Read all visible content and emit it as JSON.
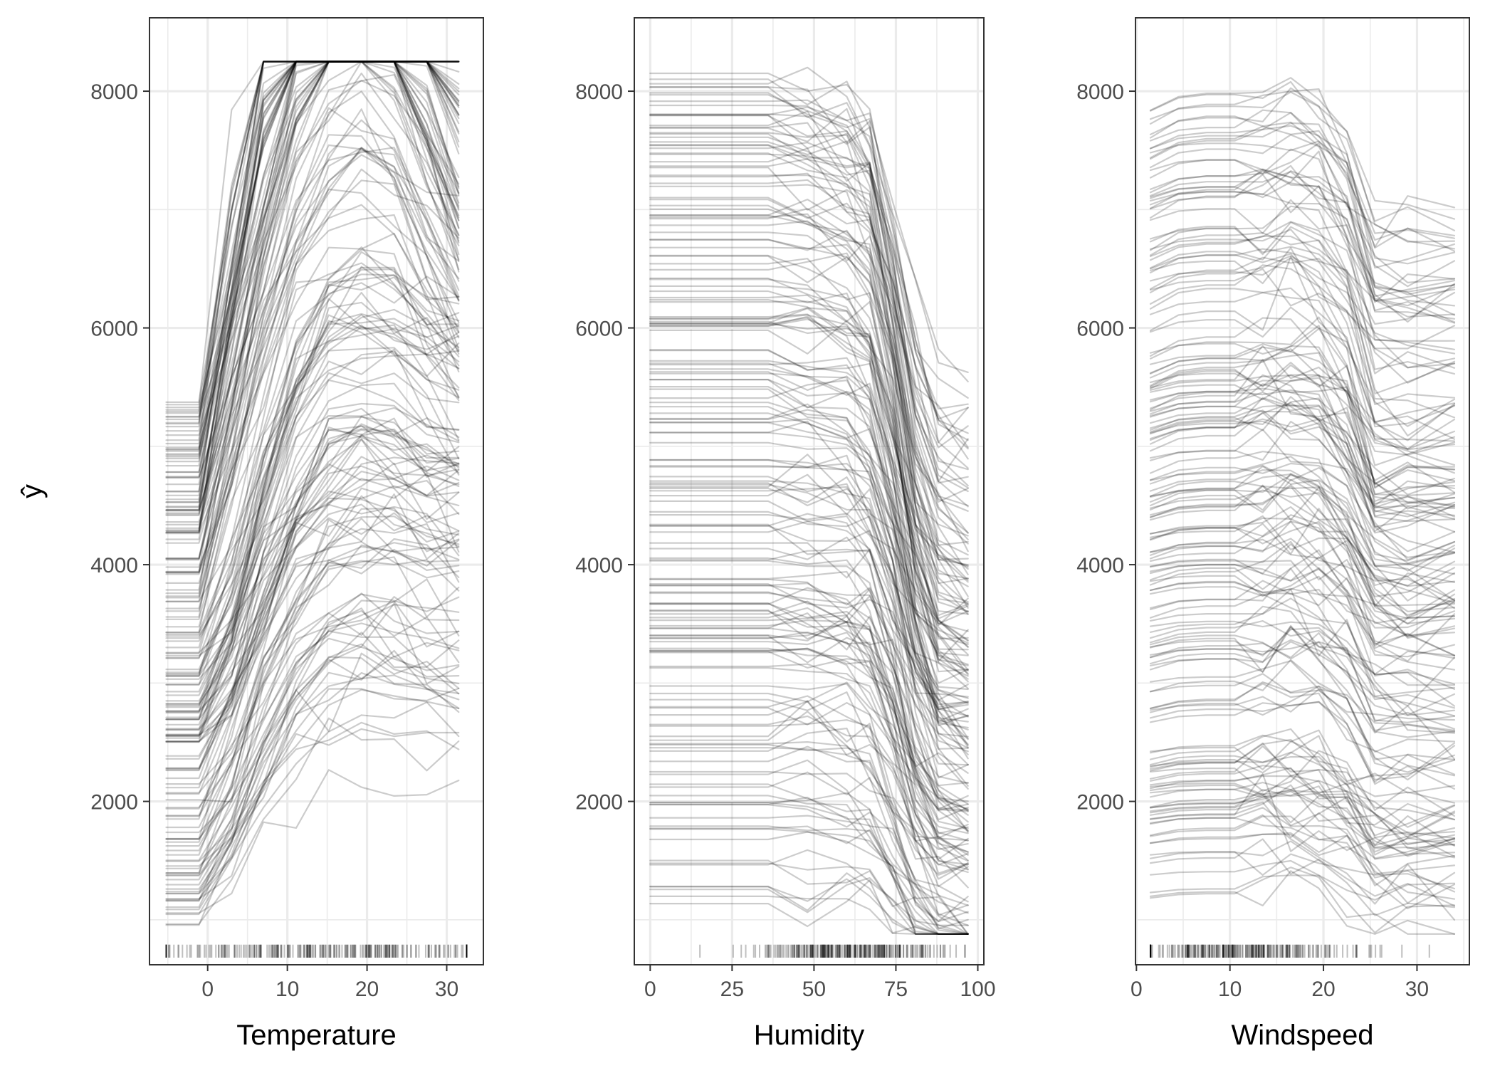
{
  "chart_data": {
    "type": "line",
    "description_kind": "individual conditional expectation curves with rug",
    "ylabel": "ŷ",
    "ylim": [
      620,
      8620
    ],
    "y_ticks": [
      2000,
      4000,
      6000,
      8000
    ],
    "y_tick_labels": [
      "2000",
      "4000",
      "6000",
      "8000"
    ],
    "line_color": "#000000",
    "line_opacity": 0.2,
    "rug_color": "#000000",
    "rug_opacity": 0.25,
    "panels": [
      {
        "id": "temperature",
        "xlabel": "Temperature",
        "xlim": [
          -7.3,
          34.6
        ],
        "x_ticks": [
          0,
          10,
          20,
          30
        ],
        "x_tick_labels": [
          "0",
          "10",
          "20",
          "30"
        ],
        "x_grid": [
          -5,
          5,
          15,
          25,
          0,
          10,
          20,
          30
        ],
        "grid_x": [
          -5.2,
          -1.1,
          3.0,
          7.0,
          11.1,
          15.2,
          19.3,
          23.4,
          27.5,
          31.5
        ],
        "rug_range": [
          -5.2,
          32.5
        ],
        "rug_peak": 15,
        "rug_spread": 12,
        "ice": {
          "x": [
            -5.2,
            -1.1,
            3.0,
            7.0,
            11.1,
            15.2,
            19.3,
            23.4,
            27.5,
            31.5
          ],
          "n_curves": 180,
          "base_range": [
            920,
            5420
          ],
          "lower_profile": [
            0,
            0,
            400,
            1000,
            1500,
            1800,
            1900,
            1850,
            1750,
            1700
          ],
          "upper_profile": [
            0,
            0,
            800,
            1600,
            2300,
            2700,
            2800,
            2650,
            2150,
            1650
          ],
          "upper_start": 3600,
          "jump_threshold": 2400,
          "max_y": 8250
        }
      },
      {
        "id": "humidity",
        "xlabel": "Humidity",
        "xlim": [
          -4.85,
          101.85
        ],
        "x_ticks": [
          0,
          25,
          50,
          75,
          100
        ],
        "x_tick_labels": [
          "0",
          "25",
          "50",
          "75",
          "100"
        ],
        "x_grid": [
          0,
          12.5,
          25,
          37.5,
          50,
          62.5,
          75,
          87.5,
          100
        ],
        "grid_x": [
          0,
          12,
          24,
          36,
          48,
          60,
          67,
          74,
          81,
          88,
          97
        ],
        "rug_range": [
          0,
          97
        ],
        "rug_peak": 62,
        "rug_spread": 14,
        "ice": {
          "x": [
            0,
            12,
            24,
            36,
            48,
            60,
            67,
            74,
            81,
            88,
            97
          ],
          "n_curves": 180,
          "base_range": [
            1080,
            8180
          ],
          "drop_profile": [
            0,
            0,
            0,
            0,
            -30,
            -120,
            -250,
            -900,
            -1700,
            -2150,
            -2250
          ],
          "max_y": 8200
        }
      },
      {
        "id": "windspeed",
        "xlabel": "Windspeed",
        "xlim": [
          -0.1,
          35.6
        ],
        "x_ticks": [
          0,
          10,
          20,
          30
        ],
        "x_tick_labels": [
          "0",
          "10",
          "20",
          "30"
        ],
        "x_grid": [
          0,
          5,
          10,
          15,
          20,
          25,
          30,
          35
        ],
        "grid_x": [
          1.5,
          4.5,
          7.5,
          10.5,
          13.5,
          16.5,
          19.5,
          22.5,
          25.5,
          29.0,
          34.0
        ],
        "rug_range": [
          1.5,
          34.0
        ],
        "rug_peak": 11,
        "rug_spread": 6,
        "ice": {
          "x": [
            1.5,
            4.5,
            7.5,
            10.5,
            13.5,
            16.5,
            19.5,
            22.5,
            25.5,
            29.0,
            34.0
          ],
          "n_curves": 180,
          "base_range": [
            1100,
            7860
          ],
          "drop_profile": [
            0,
            80,
            100,
            100,
            120,
            150,
            80,
            -150,
            -700,
            -720,
            -720
          ],
          "max_y": 8250
        }
      }
    ]
  }
}
